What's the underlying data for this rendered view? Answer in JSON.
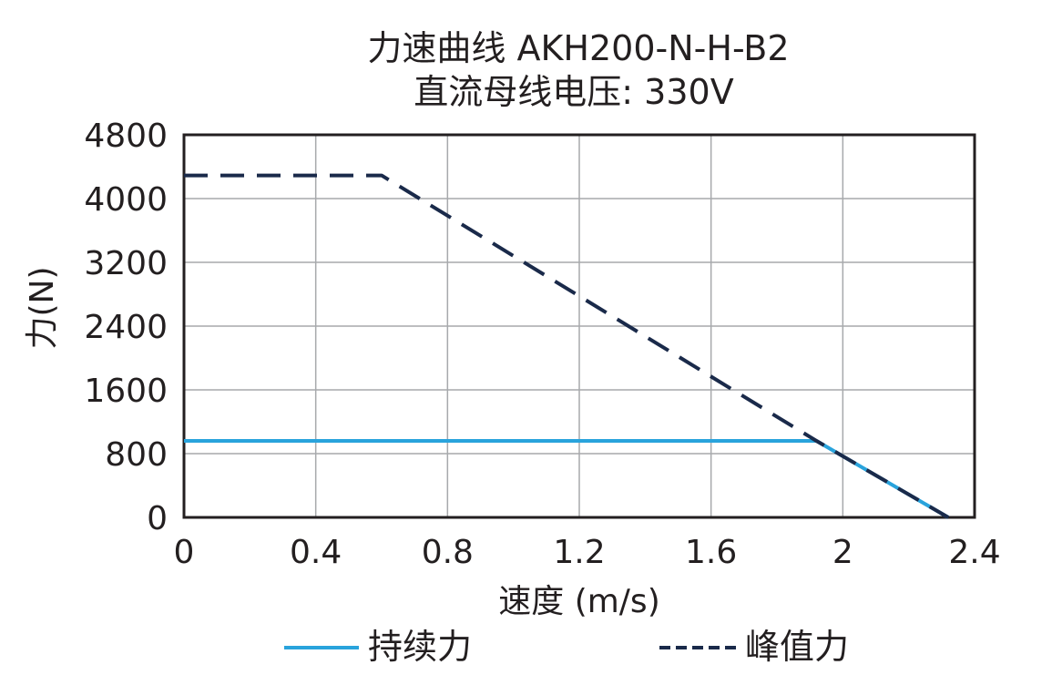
{
  "chart_data": {
    "type": "line",
    "title": "力速曲线 AKH200-N-H-B2",
    "subtitle": "直流母线电压: 330V",
    "xlabel": "速度 (m/s)",
    "ylabel": "力(N)",
    "xlim": [
      0,
      2.4
    ],
    "ylim": [
      0,
      4800
    ],
    "xticks": [
      "0",
      "0.4",
      "0.8",
      "1.2",
      "1.6",
      "2",
      "2.4"
    ],
    "yticks": [
      "0",
      "800",
      "1600",
      "2400",
      "3200",
      "4000",
      "4800"
    ],
    "grid": true,
    "legend_position": "bottom",
    "series": [
      {
        "name": "持续力",
        "style": "solid",
        "color": "#29a3dc",
        "x": [
          0,
          1.92,
          2.32
        ],
        "y": [
          960,
          960,
          0
        ]
      },
      {
        "name": "峰值力",
        "style": "dashed",
        "color": "#1a2a4a",
        "x": [
          0,
          0.6,
          1.92,
          2.32
        ],
        "y": [
          4290,
          4290,
          960,
          0
        ]
      }
    ]
  }
}
